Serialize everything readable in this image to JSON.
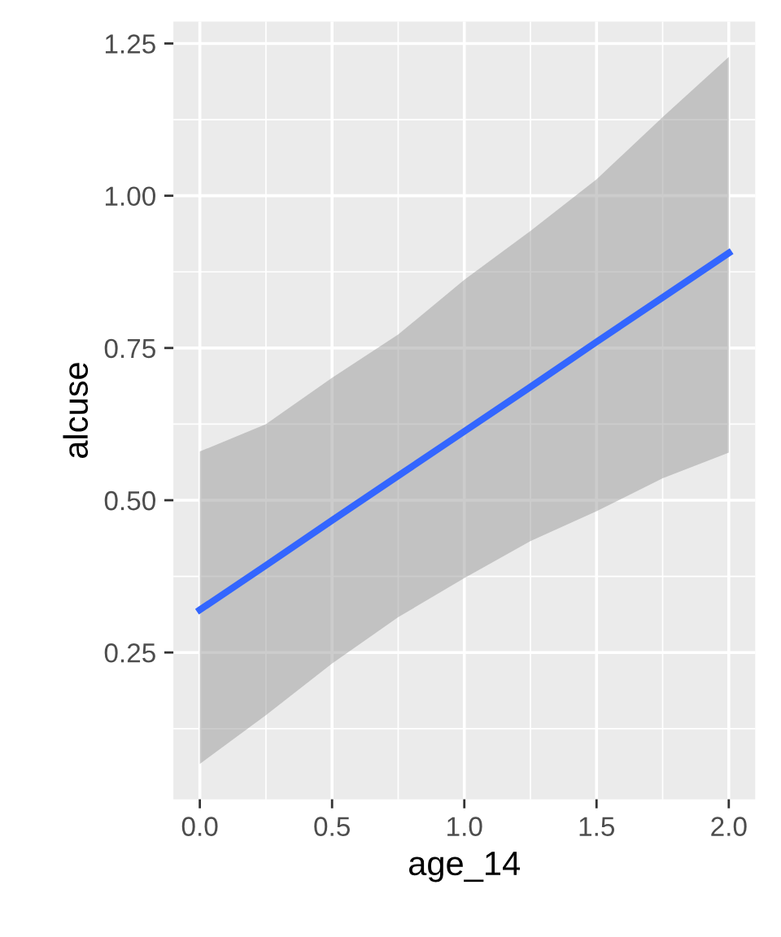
{
  "chart_data": {
    "type": "line",
    "xlabel": "age_14",
    "ylabel": "alcuse",
    "x": [
      0,
      0.25,
      0.5,
      0.75,
      1,
      1.25,
      1.5,
      1.75,
      2
    ],
    "series": [
      {
        "color": "#3366ff",
        "values": [
          0.32,
          0.393,
          0.467,
          0.54,
          0.613,
          0.686,
          0.76,
          0.833,
          0.906
        ],
        "lower": [
          0.067,
          0.147,
          0.232,
          0.308,
          0.372,
          0.433,
          0.482,
          0.536,
          0.578
        ],
        "upper": [
          0.58,
          0.625,
          0.701,
          0.772,
          0.862,
          0.942,
          1.027,
          1.129,
          1.228
        ]
      }
    ],
    "xlim": [
      -0.1,
      2.1
    ],
    "ylim": [
      0.009,
      1.286
    ],
    "xticks": [
      {
        "value": 0,
        "label": "0.0"
      },
      0.5,
      {
        "value": 1,
        "label": "1.0"
      },
      1.5,
      {
        "value": 2,
        "label": "2.0"
      }
    ],
    "yticks": [
      0.25,
      {
        "value": 0.5,
        "label": "0.50"
      },
      0.75,
      {
        "value": 1,
        "label": "1.00"
      },
      1.25
    ],
    "grid": true,
    "marker": "none",
    "line_style": "solid"
  }
}
